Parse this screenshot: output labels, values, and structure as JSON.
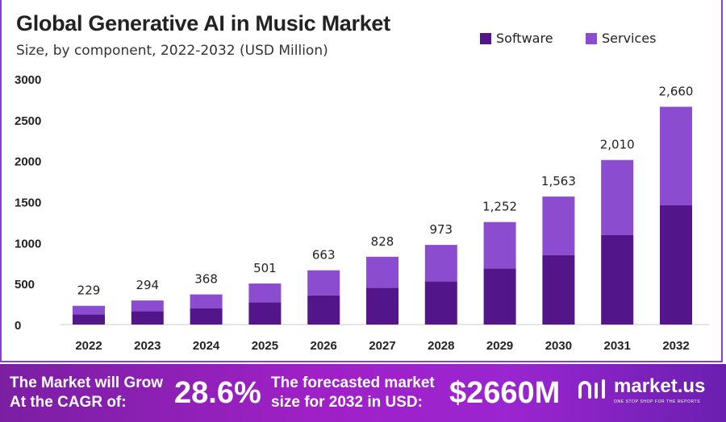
{
  "chart_data": {
    "type": "bar",
    "stacked": true,
    "title": "Global Generative AI in Music Market",
    "subtitle": "Size, by component, 2022-2032 (USD Million)",
    "categories": [
      "2022",
      "2023",
      "2024",
      "2025",
      "2026",
      "2027",
      "2028",
      "2029",
      "2030",
      "2031",
      "2032"
    ],
    "series": [
      {
        "name": "Software",
        "color": "#52158a",
        "values": [
          125,
          164,
          197,
          272,
          357,
          450,
          528,
          686,
          849,
          1095,
          1456
        ]
      },
      {
        "name": "Services",
        "color": "#8b4ccf",
        "values": [
          104,
          130,
          171,
          229,
          306,
          378,
          445,
          566,
          714,
          915,
          1204
        ]
      }
    ],
    "totals_labels": [
      "229",
      "294",
      "368",
      "501",
      "663",
      "828",
      "973",
      "1,252",
      "1,563",
      "2,010",
      "2,660"
    ],
    "totals": [
      229,
      294,
      368,
      501,
      663,
      828,
      973,
      1252,
      1563,
      2010,
      2660
    ],
    "ylim": [
      0,
      3000
    ],
    "yticks": [
      "0",
      "500",
      "1000",
      "1500",
      "2000",
      "2500",
      "3000"
    ],
    "grid": false,
    "legend_position": "top-right"
  },
  "footer": {
    "cagr_text_line1": "The Market will Grow",
    "cagr_text_line2": "At the CAGR of:",
    "cagr_value": "28.6%",
    "forecast_text_line1": "The forecasted market",
    "forecast_text_line2": "size for 2032 in USD:",
    "forecast_value": "$2660M",
    "brand": "market.us",
    "brand_tagline": "ONE STOP SHOP FOR THE REPORTS"
  }
}
